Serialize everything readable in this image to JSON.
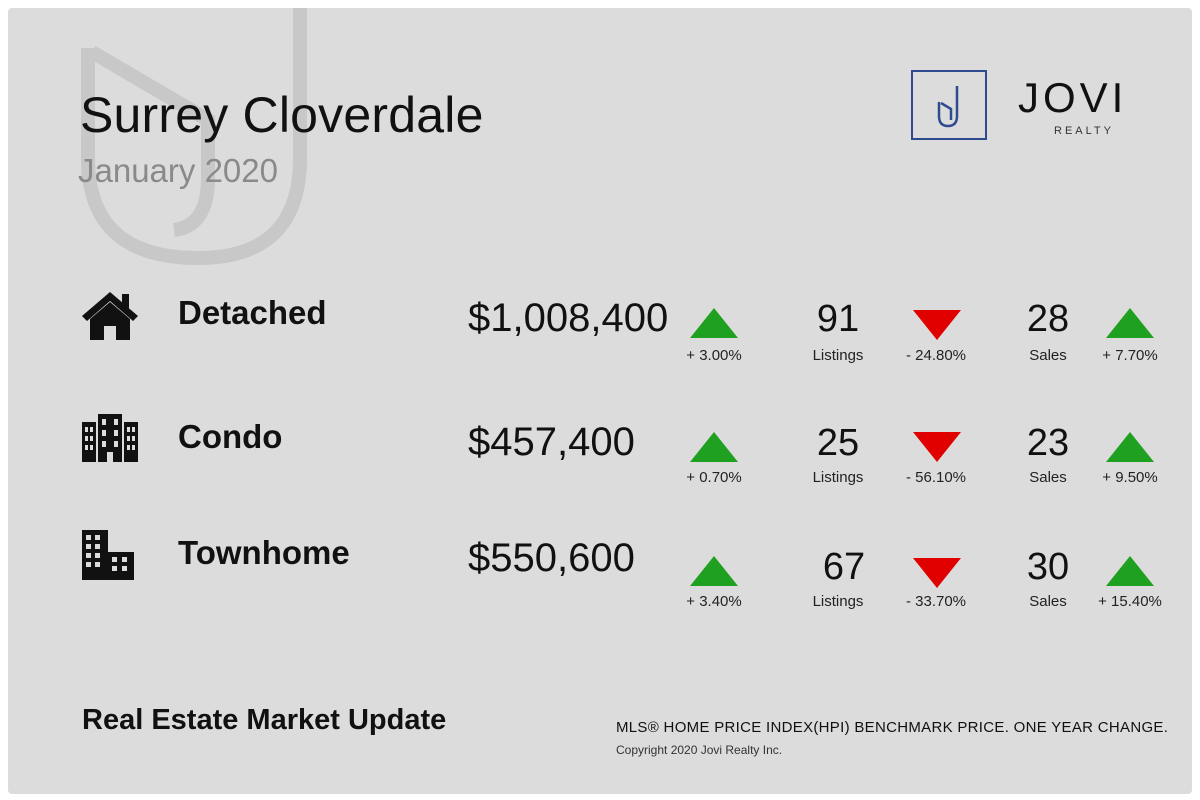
{
  "header": {
    "title": "Surrey Cloverdale",
    "subtitle": "January 2020"
  },
  "brand": {
    "monogram": "J",
    "name": "JOVI",
    "tagline": "REALTY",
    "logo_color": "#2e4b8f"
  },
  "colors": {
    "up": "#20a020",
    "down": "#e00000",
    "background": "#dcdcdc"
  },
  "rows": [
    {
      "icon": "house-icon",
      "label": "Detached",
      "price": "$1,008,400",
      "price_change": "+ 3.00%",
      "price_trend": "up",
      "listings": "91",
      "listings_label": "Listings",
      "listings_change": "- 24.80%",
      "listings_trend": "down",
      "sales": "28",
      "sales_label": "Sales",
      "sales_change": "+ 7.70%",
      "sales_trend": "up"
    },
    {
      "icon": "condo-building-icon",
      "label": "Condo",
      "price": "$457,400",
      "price_change": "+ 0.70%",
      "price_trend": "up",
      "listings": "25",
      "listings_label": "Listings",
      "listings_change": "- 56.10%",
      "listings_trend": "down",
      "sales": "23",
      "sales_label": "Sales",
      "sales_change": "+ 9.50%",
      "sales_trend": "up"
    },
    {
      "icon": "townhome-building-icon",
      "label": "Townhome",
      "price": "$550,600",
      "price_change": "+ 3.40%",
      "price_trend": "up",
      "listings": "67",
      "listings_label": "Listings",
      "listings_change": "- 33.70%",
      "listings_trend": "down",
      "sales": "30",
      "sales_label": "Sales",
      "sales_change": "+ 15.40%",
      "sales_trend": "up"
    }
  ],
  "footer": {
    "title": "Real Estate Market Update",
    "note": "MLS® HOME PRICE INDEX(HPI) BENCHMARK PRICE. ONE YEAR CHANGE.",
    "copyright": "Copyright 2020 Jovi Realty Inc."
  }
}
